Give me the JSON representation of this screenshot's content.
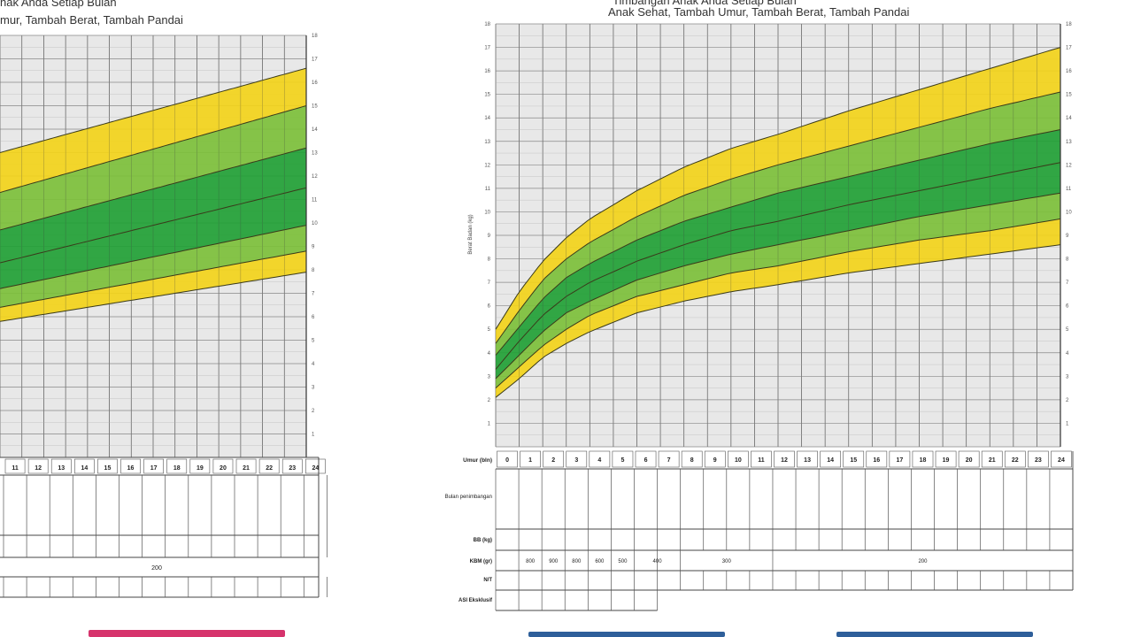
{
  "left_card": {
    "title_line1": "nak Anda Setiap Bulan",
    "title_line2": "mur, Tambah Berat, Tambah Pandai",
    "month_labels": [
      "11",
      "12",
      "13",
      "14",
      "15",
      "16",
      "17",
      "18",
      "19",
      "20",
      "21",
      "22",
      "23",
      "24"
    ],
    "y_tick_labels": [
      "1",
      "2",
      "3",
      "4",
      "5",
      "6",
      "7",
      "8",
      "9",
      "10",
      "11",
      "12",
      "13",
      "14",
      "15",
      "16",
      "17",
      "18"
    ],
    "kbm_value": "200"
  },
  "right_card": {
    "title_line1": "Timbangan Anak Anda Setiap Bulan",
    "title_line2": "Anak Sehat, Tambah Umur, Tambah Berat, Tambah Pandai",
    "ylabel": "Berat Badan (kg)",
    "row_labels": [
      "Umur (bln)",
      "Bulan penimbangan",
      "BB (kg)",
      "KBM (gr)",
      "N/T",
      "ASI Eksklusif"
    ],
    "kbm_values": [
      "800",
      "900",
      "800",
      "600",
      "500",
      "400",
      "300",
      "200"
    ],
    "month_labels": [
      "0",
      "1",
      "2",
      "3",
      "4",
      "5",
      "6",
      "7",
      "8",
      "9",
      "10",
      "11",
      "12",
      "13",
      "14",
      "15",
      "16",
      "17",
      "18",
      "19",
      "20",
      "21",
      "22",
      "23",
      "24"
    ],
    "y_tick_labels": [
      "1",
      "2",
      "3",
      "4",
      "5",
      "6",
      "7",
      "8",
      "9",
      "10",
      "11",
      "12",
      "13",
      "14",
      "15",
      "16",
      "17",
      "18"
    ]
  },
  "colors": {
    "yellow": "#f2d31a",
    "light_green": "#7cbf3a",
    "dark_green": "#21a035",
    "grid_bg": "#e8e8e8",
    "pink_button": "#d6336c",
    "blue_button": "#2e5f9a"
  },
  "chart_data": [
    {
      "type": "area",
      "title": "",
      "xlabel": "Umur (bln)",
      "ylabel": "",
      "x": [
        10,
        24
      ],
      "xlim": [
        10,
        24
      ],
      "ylim": [
        0,
        18
      ],
      "series": [
        {
          "values": [
            5.8,
            7.9
          ]
        },
        {
          "values": [
            6.4,
            8.8
          ]
        },
        {
          "values": [
            7.2,
            9.9
          ]
        },
        {
          "values": [
            8.3,
            11.5
          ]
        },
        {
          "values": [
            9.7,
            13.2
          ]
        },
        {
          "values": [
            11.3,
            15.0
          ]
        },
        {
          "values": [
            13.0,
            16.6
          ]
        }
      ]
    },
    {
      "type": "area",
      "title": "Timbangan Anak Anda Setiap Bulan",
      "xlabel": "Umur (bln)",
      "ylabel": "Berat Badan (kg)",
      "x": [
        0,
        1,
        2,
        3,
        4,
        6,
        8,
        10,
        12,
        15,
        18,
        21,
        24
      ],
      "xlim": [
        0,
        24
      ],
      "ylim": [
        0,
        18
      ],
      "series": [
        {
          "values": [
            2.1,
            2.9,
            3.8,
            4.4,
            4.9,
            5.7,
            6.2,
            6.6,
            6.9,
            7.4,
            7.8,
            8.2,
            8.6
          ]
        },
        {
          "values": [
            2.5,
            3.4,
            4.3,
            5.0,
            5.6,
            6.4,
            6.9,
            7.4,
            7.7,
            8.3,
            8.8,
            9.2,
            9.7
          ]
        },
        {
          "values": [
            2.9,
            3.9,
            4.9,
            5.7,
            6.2,
            7.1,
            7.7,
            8.2,
            8.6,
            9.2,
            9.8,
            10.3,
            10.8
          ]
        },
        {
          "values": [
            3.3,
            4.5,
            5.6,
            6.4,
            7.0,
            7.9,
            8.6,
            9.2,
            9.6,
            10.3,
            10.9,
            11.5,
            12.1
          ]
        },
        {
          "values": [
            3.9,
            5.1,
            6.3,
            7.2,
            7.8,
            8.8,
            9.6,
            10.2,
            10.8,
            11.5,
            12.2,
            12.9,
            13.5
          ]
        },
        {
          "values": [
            4.4,
            5.8,
            7.1,
            8.0,
            8.7,
            9.8,
            10.7,
            11.4,
            12.0,
            12.8,
            13.6,
            14.4,
            15.1
          ]
        },
        {
          "values": [
            5.0,
            6.6,
            7.9,
            8.9,
            9.7,
            10.9,
            11.9,
            12.7,
            13.3,
            14.3,
            15.2,
            16.1,
            17.0
          ]
        }
      ]
    }
  ]
}
